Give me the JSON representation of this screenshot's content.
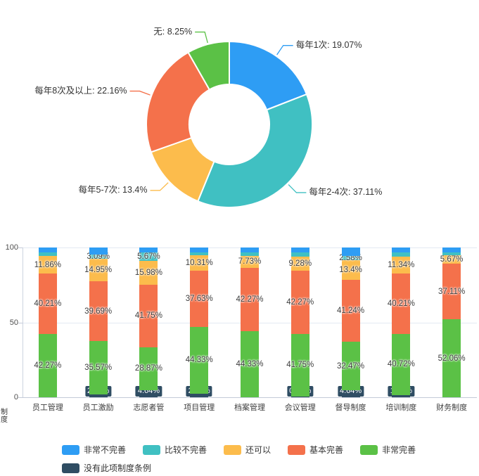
{
  "colors": {
    "blue": "#2e9df4",
    "teal": "#40c0c2",
    "yellow": "#fcbc4c",
    "orange": "#f4714b",
    "green": "#5bc146",
    "dark": "#2f4d63",
    "axis": "#c3cad8",
    "grid": "#e4e9f2",
    "label_text": "#3d3d3d"
  },
  "chart_data": [
    {
      "type": "pie",
      "donut": true,
      "title": "",
      "label_format": "{name}: {value}%",
      "slices": [
        {
          "name": "每年1次",
          "value": 19.07,
          "color_key": "blue"
        },
        {
          "name": "每年2-4次",
          "value": 37.11,
          "color_key": "teal"
        },
        {
          "name": "每年5-7次",
          "value": 13.4,
          "color_key": "yellow"
        },
        {
          "name": "每年8次及以上",
          "value": 22.16,
          "color_key": "orange"
        },
        {
          "name": "无",
          "value": 8.25,
          "color_key": "green"
        }
      ]
    },
    {
      "type": "bar",
      "stacked": true,
      "ylim": [
        0,
        100
      ],
      "yticks": [
        0,
        50,
        100
      ],
      "grid": true,
      "ylabel": "制度",
      "categories": [
        "员工管理",
        "员工激励",
        "志愿者管",
        "项目管理",
        "档案管理",
        "会议管理",
        "督导制度",
        "培训制度",
        "财务制度"
      ],
      "series": [
        {
          "name": "没有此项制度条例",
          "color_key": "dark",
          "values": [
            0,
            2.06,
            4.64,
            2.58,
            0,
            0.52,
            4.64,
            1.55,
            0
          ],
          "labels": [
            null,
            "2.06%",
            "4.64%",
            "2.58%",
            null,
            "0.52%",
            "4.64%",
            "1.55%",
            null
          ]
        },
        {
          "name": "非常完善",
          "color_key": "green",
          "values": [
            42.27,
            35.57,
            28.87,
            44.33,
            44.33,
            41.75,
            32.47,
            40.72,
            52.06
          ],
          "labels": [
            "42.27%",
            "35.57%",
            "28.87%",
            "44.33%",
            "44.33%",
            "41.75%",
            "32.47%",
            "40.72%",
            "52.06%"
          ]
        },
        {
          "name": "基本完善",
          "color_key": "orange",
          "values": [
            40.21,
            39.69,
            41.75,
            37.63,
            42.27,
            42.27,
            41.24,
            40.21,
            37.11
          ],
          "labels": [
            "40.21%",
            "39.69%",
            "41.75%",
            "37.63%",
            "42.27%",
            "42.27%",
            "41.24%",
            "40.21%",
            "37.11%"
          ]
        },
        {
          "name": "还可以",
          "color_key": "yellow",
          "values": [
            11.86,
            14.95,
            15.98,
            10.31,
            7.73,
            9.28,
            13.4,
            11.34,
            5.67
          ],
          "labels": [
            "11.86%",
            "14.95%",
            "15.98%",
            "10.31%",
            "7.73%",
            "9.28%",
            "13.4%",
            "11.34%",
            "5.67%"
          ]
        },
        {
          "name": "比较不完善",
          "color_key": "teal",
          "values": [
            2.57,
            3.09,
            5.67,
            2.06,
            2.58,
            3.09,
            2.58,
            3.09,
            2.06
          ],
          "labels": [
            null,
            "3.09%",
            "5.67%",
            null,
            null,
            null,
            "2.58%",
            null,
            null
          ]
        },
        {
          "name": "非常不完善",
          "color_key": "blue",
          "values": [
            3.09,
            4.64,
            3.09,
            3.09,
            3.09,
            3.09,
            5.67,
            3.09,
            3.1
          ],
          "labels": [
            null,
            null,
            null,
            null,
            null,
            null,
            null,
            null,
            null
          ]
        }
      ]
    }
  ],
  "legend": {
    "rows": [
      [
        {
          "label": "非常不完善",
          "color_key": "blue"
        },
        {
          "label": "比较不完善",
          "color_key": "teal"
        },
        {
          "label": "还可以",
          "color_key": "yellow"
        },
        {
          "label": "基本完善",
          "color_key": "orange"
        },
        {
          "label": "非常完善",
          "color_key": "green"
        }
      ],
      [
        {
          "label": "没有此项制度条例",
          "color_key": "dark"
        }
      ]
    ]
  }
}
